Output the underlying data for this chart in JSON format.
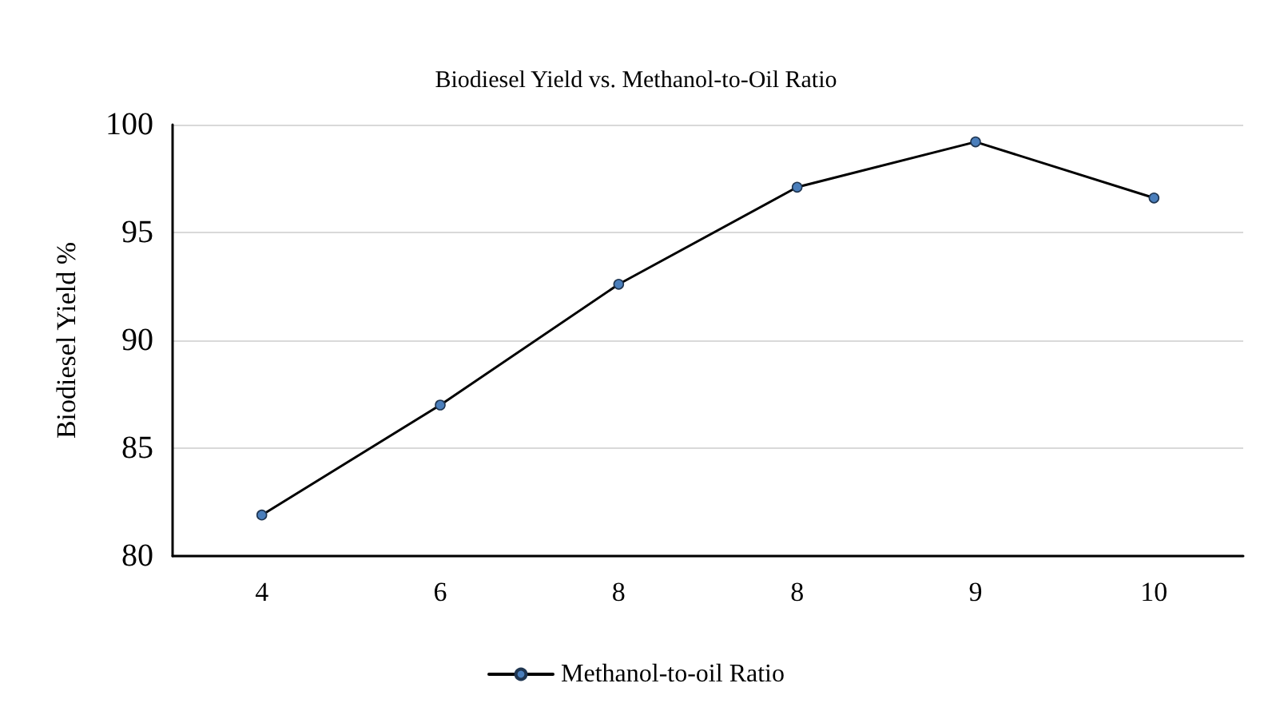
{
  "chart_data": {
    "type": "line",
    "title": "Biodiesel Yield vs. Methanol-to-Oil Ratio",
    "ylabel": "Biodiesel Yield %",
    "categories": [
      "4",
      "6",
      "8",
      "8",
      "9",
      "10"
    ],
    "series": [
      {
        "name": "Methanol-to-oil Ratio",
        "color": "#4a7ebb",
        "values": [
          81.9,
          87.0,
          92.6,
          97.1,
          99.2,
          96.6
        ]
      }
    ],
    "ylim": [
      80,
      100
    ],
    "yticks": [
      80,
      85,
      90,
      95,
      100
    ],
    "grid": "y",
    "legend": "bottom",
    "marker": "circle",
    "line_style": "solid"
  }
}
